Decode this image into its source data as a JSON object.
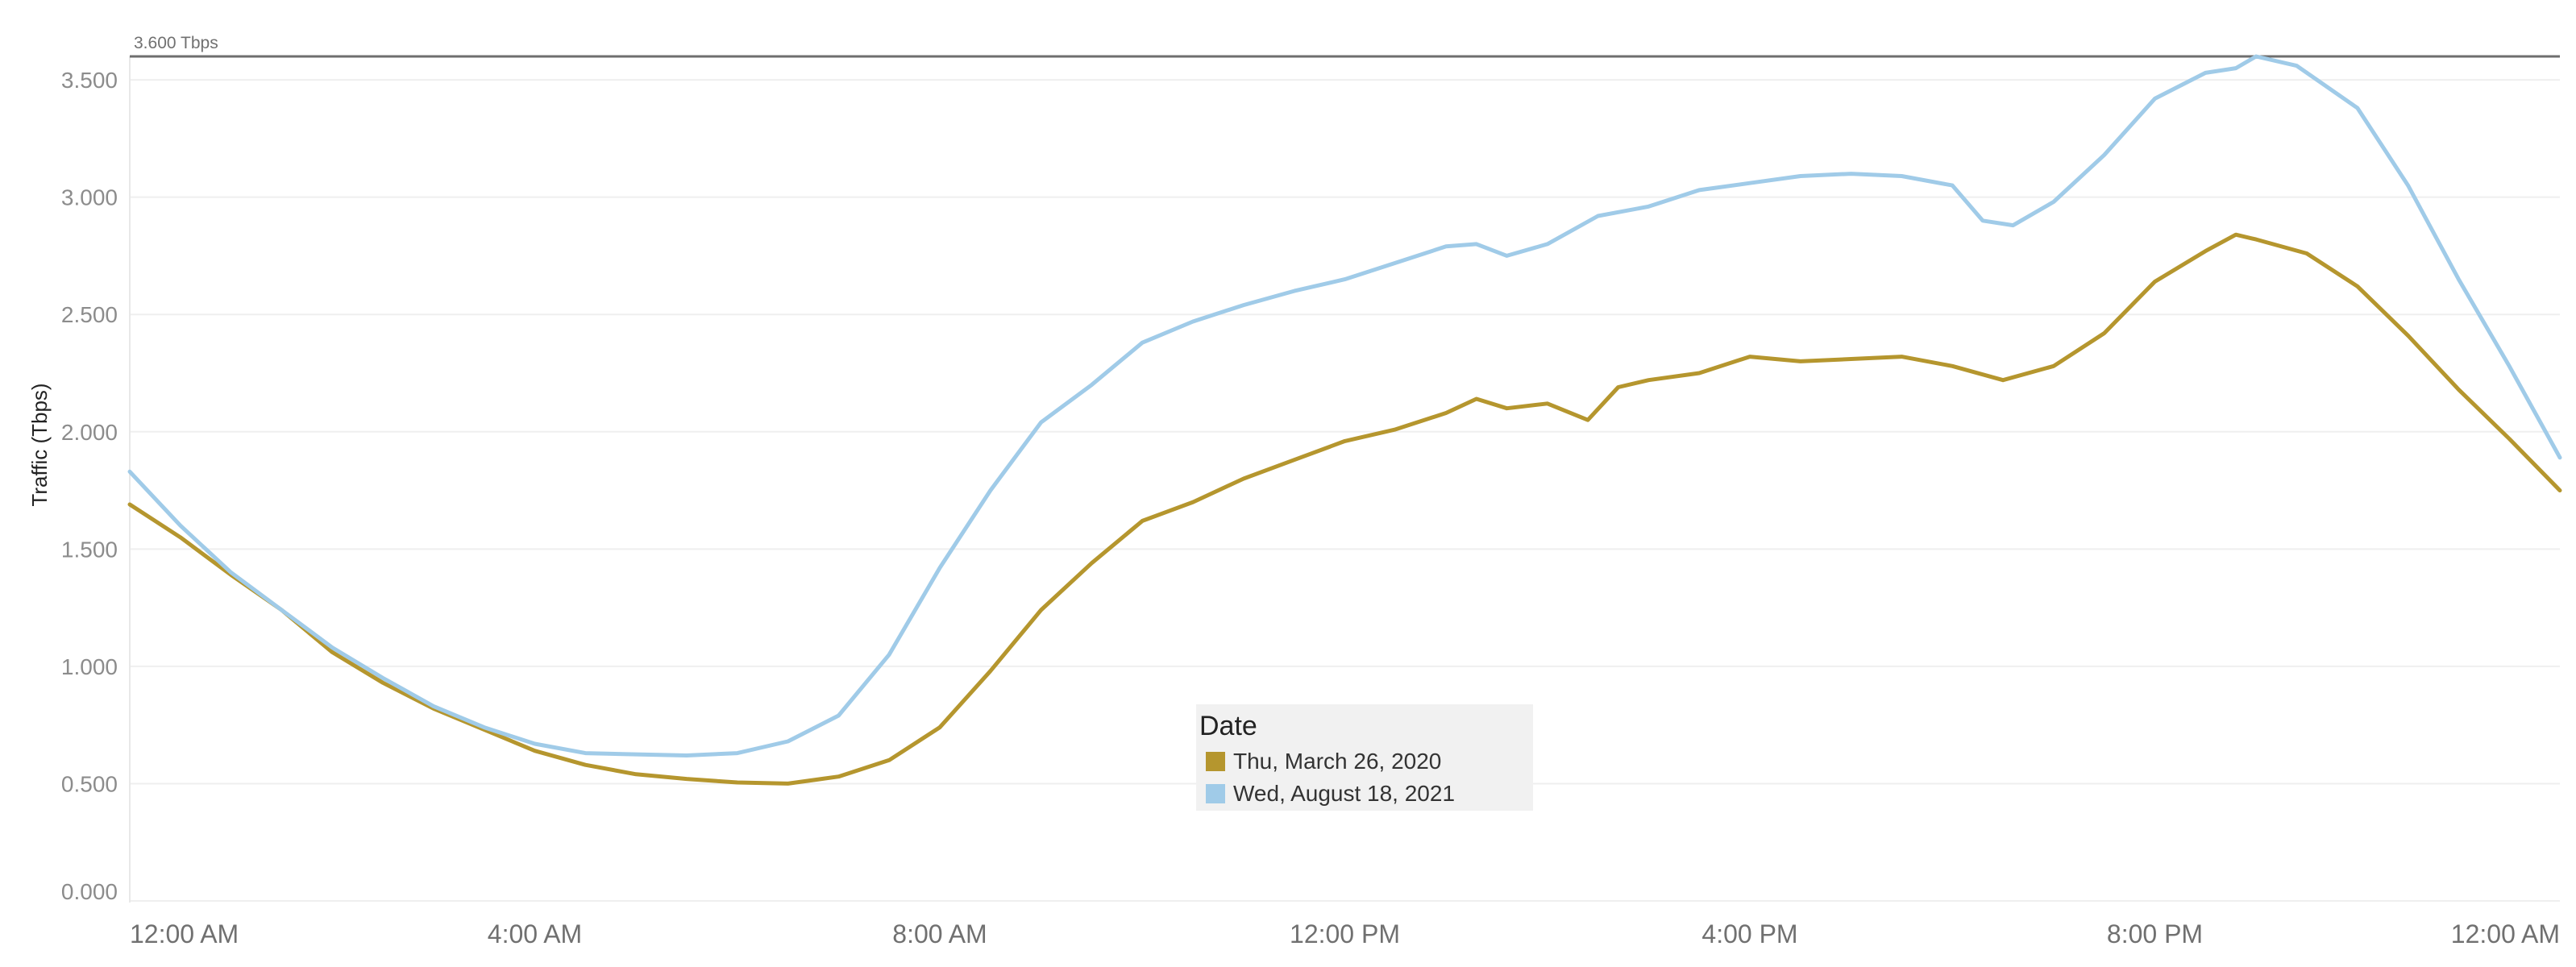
{
  "chart_data": {
    "type": "line",
    "xlabel": "",
    "ylabel": "Traffic (Tbps)",
    "x_tick_labels": [
      "12:00 AM",
      "4:00 AM",
      "8:00 AM",
      "12:00 PM",
      "4:00 PM",
      "8:00 PM",
      "12:00 AM"
    ],
    "x_range_hours": [
      0,
      24
    ],
    "y_tick_labels": [
      "0.000",
      "0.500",
      "1.000",
      "1.500",
      "2.000",
      "2.500",
      "3.000",
      "3.500"
    ],
    "ylim": [
      0,
      3.6
    ],
    "grid": "horizontal",
    "reference_line": {
      "value": 3.6,
      "label": "3.600 Tbps"
    },
    "legend": {
      "title": "Date",
      "placement": "center-bottom",
      "entries": [
        "Thu, March 26, 2020",
        "Wed, August 18, 2021"
      ]
    },
    "series": [
      {
        "name": "Thu, March 26, 2020",
        "color": "#b5962e",
        "points": [
          [
            0,
            1.69
          ],
          [
            0.5,
            1.55
          ],
          [
            1,
            1.39
          ],
          [
            1.5,
            1.24
          ],
          [
            2,
            1.06
          ],
          [
            2.5,
            0.93
          ],
          [
            3,
            0.82
          ],
          [
            3.5,
            0.73
          ],
          [
            4,
            0.64
          ],
          [
            4.5,
            0.58
          ],
          [
            5,
            0.54
          ],
          [
            5.5,
            0.52
          ],
          [
            6,
            0.505
          ],
          [
            6.5,
            0.5
          ],
          [
            7,
            0.53
          ],
          [
            7.5,
            0.6
          ],
          [
            8,
            0.74
          ],
          [
            8.5,
            0.98
          ],
          [
            9,
            1.24
          ],
          [
            9.5,
            1.44
          ],
          [
            10,
            1.62
          ],
          [
            10.5,
            1.7
          ],
          [
            11,
            1.8
          ],
          [
            11.5,
            1.88
          ],
          [
            12,
            1.96
          ],
          [
            12.5,
            2.01
          ],
          [
            13,
            2.08
          ],
          [
            13.3,
            2.14
          ],
          [
            13.6,
            2.1
          ],
          [
            14,
            2.12
          ],
          [
            14.4,
            2.05
          ],
          [
            14.7,
            2.19
          ],
          [
            15,
            2.22
          ],
          [
            15.5,
            2.25
          ],
          [
            16,
            2.32
          ],
          [
            16.5,
            2.3
          ],
          [
            17,
            2.31
          ],
          [
            17.5,
            2.32
          ],
          [
            18,
            2.28
          ],
          [
            18.5,
            2.22
          ],
          [
            19,
            2.28
          ],
          [
            19.5,
            2.42
          ],
          [
            20,
            2.64
          ],
          [
            20.5,
            2.77
          ],
          [
            20.8,
            2.84
          ],
          [
            21,
            2.82
          ],
          [
            21.5,
            2.76
          ],
          [
            22,
            2.62
          ],
          [
            22.5,
            2.41
          ],
          [
            23,
            2.18
          ],
          [
            23.5,
            1.97
          ],
          [
            24,
            1.75
          ]
        ]
      },
      {
        "name": "Wed, August 18, 2021",
        "color": "#a0cbe8",
        "points": [
          [
            0,
            1.83
          ],
          [
            0.5,
            1.6
          ],
          [
            1,
            1.4
          ],
          [
            1.5,
            1.24
          ],
          [
            2,
            1.08
          ],
          [
            2.5,
            0.95
          ],
          [
            3,
            0.83
          ],
          [
            3.5,
            0.74
          ],
          [
            4,
            0.67
          ],
          [
            4.5,
            0.63
          ],
          [
            5,
            0.625
          ],
          [
            5.5,
            0.62
          ],
          [
            6,
            0.63
          ],
          [
            6.5,
            0.68
          ],
          [
            7,
            0.79
          ],
          [
            7.5,
            1.05
          ],
          [
            8,
            1.42
          ],
          [
            8.5,
            1.75
          ],
          [
            9,
            2.04
          ],
          [
            9.5,
            2.2
          ],
          [
            10,
            2.38
          ],
          [
            10.5,
            2.47
          ],
          [
            11,
            2.54
          ],
          [
            11.5,
            2.6
          ],
          [
            12,
            2.65
          ],
          [
            12.5,
            2.72
          ],
          [
            13,
            2.79
          ],
          [
            13.3,
            2.8
          ],
          [
            13.6,
            2.75
          ],
          [
            14,
            2.8
          ],
          [
            14.5,
            2.92
          ],
          [
            15,
            2.96
          ],
          [
            15.5,
            3.03
          ],
          [
            16,
            3.06
          ],
          [
            16.5,
            3.09
          ],
          [
            17,
            3.1
          ],
          [
            17.5,
            3.09
          ],
          [
            18,
            3.05
          ],
          [
            18.3,
            2.9
          ],
          [
            18.6,
            2.88
          ],
          [
            19,
            2.98
          ],
          [
            19.5,
            3.18
          ],
          [
            20,
            3.42
          ],
          [
            20.5,
            3.53
          ],
          [
            20.8,
            3.55
          ],
          [
            21,
            3.6
          ],
          [
            21.4,
            3.56
          ],
          [
            22,
            3.38
          ],
          [
            22.5,
            3.05
          ],
          [
            23,
            2.65
          ],
          [
            23.5,
            2.28
          ],
          [
            24,
            1.89
          ]
        ]
      }
    ]
  }
}
